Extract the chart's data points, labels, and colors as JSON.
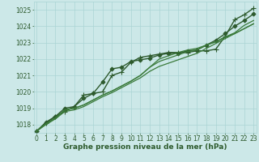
{
  "title": "Graphe pression niveau de la mer (hPa)",
  "bg_color": "#cce8e8",
  "grid_color": "#aad4d4",
  "line_color_main": "#2d5a2d",
  "line_color_secondary": "#3a7a3a",
  "xlim": [
    -0.3,
    23.3
  ],
  "ylim": [
    1017.5,
    1025.5
  ],
  "yticks": [
    1018,
    1019,
    1020,
    1021,
    1022,
    1023,
    1024,
    1025
  ],
  "xticks": [
    0,
    1,
    2,
    3,
    4,
    5,
    6,
    7,
    8,
    9,
    10,
    11,
    12,
    13,
    14,
    15,
    16,
    17,
    18,
    19,
    20,
    21,
    22,
    23
  ],
  "series": [
    [
      1017.6,
      1018.1,
      1018.5,
      1018.8,
      1019.1,
      1019.8,
      1019.9,
      1020.0,
      1021.0,
      1021.2,
      1021.8,
      1022.1,
      1022.2,
      1022.3,
      1022.4,
      1022.4,
      1022.4,
      1022.5,
      1022.5,
      1022.6,
      1023.4,
      1024.4,
      1024.7,
      1025.1
    ],
    [
      1017.6,
      1018.15,
      1018.5,
      1019.0,
      1019.1,
      1019.6,
      1019.9,
      1020.6,
      1021.4,
      1021.5,
      1021.85,
      1021.95,
      1022.05,
      1022.25,
      1022.35,
      1022.35,
      1022.5,
      1022.55,
      1022.85,
      1023.15,
      1023.55,
      1024.0,
      1024.35,
      1024.75
    ],
    [
      1017.6,
      1018.05,
      1018.4,
      1018.9,
      1019.0,
      1019.2,
      1019.5,
      1019.8,
      1020.05,
      1020.35,
      1020.65,
      1021.0,
      1021.5,
      1022.0,
      1022.2,
      1022.4,
      1022.55,
      1022.65,
      1022.85,
      1023.05,
      1023.35,
      1023.6,
      1024.05,
      1024.35
    ],
    [
      1017.6,
      1018.05,
      1018.4,
      1018.9,
      1019.0,
      1019.2,
      1019.5,
      1019.8,
      1020.05,
      1020.35,
      1020.65,
      1021.0,
      1021.5,
      1021.85,
      1022.05,
      1022.25,
      1022.45,
      1022.55,
      1022.85,
      1023.05,
      1023.35,
      1023.55,
      1023.85,
      1024.15
    ],
    [
      1017.6,
      1018.0,
      1018.35,
      1018.8,
      1018.9,
      1019.1,
      1019.4,
      1019.7,
      1019.95,
      1020.25,
      1020.55,
      1020.85,
      1021.25,
      1021.55,
      1021.75,
      1021.95,
      1022.15,
      1022.35,
      1022.65,
      1022.95,
      1023.25,
      1023.55,
      1023.85,
      1024.15
    ]
  ],
  "font_color": "#2d5a2d",
  "label_fontsize": 6.5,
  "tick_fontsize": 5.5
}
